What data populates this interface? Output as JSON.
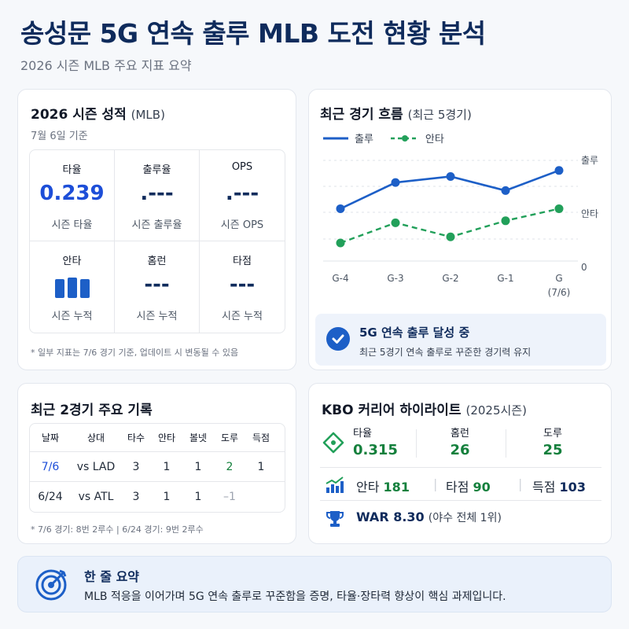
{
  "header": {
    "title": "송성문 5G 연속 출루 MLB 도전 현황 분석",
    "subtitle": "2026 시즌 MLB 주요 지표 요약"
  },
  "season": {
    "title": "2026 시즌 성적",
    "title_paren": "(MLB)",
    "date": "7월 6일 기준",
    "cells": [
      {
        "label": "타율",
        "value": "0.239",
        "caption": "시즌 타율"
      },
      {
        "label": "출루율",
        "value": ".---",
        "caption": "시즌 출루율"
      },
      {
        "label": "OPS",
        "value": ".---",
        "caption": "시즌 OPS"
      },
      {
        "label": "안타",
        "caption": "시즌 누적"
      },
      {
        "label": "홈런",
        "value": "---",
        "caption": "시즌 누적"
      },
      {
        "label": "타점",
        "value": "---",
        "caption": "시즌 누적"
      }
    ],
    "footnote": "* 일부 지표는 7/6 경기 기준, 업데이트 시 변동될 수 있음"
  },
  "trend": {
    "title": "최근 경기 흐름",
    "title_paren": "(최근 5경기)",
    "legend": {
      "onbase": "출루",
      "hits": "안타"
    },
    "status_title": "5G 연속 출루 달성 중",
    "status_desc": "최근 5경기 연속 출루로 꾸준한 경기력 유지",
    "colors": {
      "onbase": "#1d5fc7",
      "hits": "#22a05a"
    }
  },
  "chart_data": {
    "type": "line",
    "categories": [
      "G-4",
      "G-3",
      "G-2",
      "G-1",
      "G"
    ],
    "category_sub": [
      "",
      "",
      "",
      "",
      "(7/6)"
    ],
    "y_labels": [
      "출루",
      "안타",
      "0"
    ],
    "grid": true,
    "series": [
      {
        "name": "출루",
        "style": "solid",
        "values": [
          0.52,
          0.78,
          0.84,
          0.7,
          0.9
        ]
      },
      {
        "name": "안타",
        "style": "dashed",
        "values": [
          0.18,
          0.38,
          0.24,
          0.4,
          0.52
        ]
      }
    ],
    "ylim": [
      0,
      1
    ]
  },
  "recent": {
    "title": "최근 2경기 주요 기록",
    "headers": [
      "날짜",
      "상대",
      "타수",
      "안타",
      "볼넷",
      "도루",
      "득점"
    ],
    "rows": [
      [
        "7/6",
        "vs LAD",
        "3",
        "1",
        "1",
        "2",
        "1"
      ],
      [
        "6/24",
        "vs ATL",
        "3",
        "1",
        "1",
        "–1",
        ""
      ]
    ],
    "footnote": "* 7/6 경기: 8번 2루수  |  6/24 경기: 9번 2루수"
  },
  "kbo": {
    "title": "KBO 커리어 하이라이트",
    "title_paren": "(2025시즌)",
    "avg_label": "타율",
    "avg_value": "0.315",
    "hr_label": "홈런",
    "hr_value": "26",
    "sb_label": "도루",
    "sb_value": "25",
    "hits_label": "안타",
    "hits_value": "181",
    "rbi_label": "타점",
    "rbi_value": "90",
    "runs_label": "득점",
    "runs_value": "103",
    "war": "WAR 8.30",
    "war_note": "(야수 전체 1위)"
  },
  "summary": {
    "title": "한 줄 요약",
    "text": "MLB 적응을 이어가며 5G 연속 출루로 꾸준함을 증명, 타율·장타력 향상이 핵심 과제입니다."
  }
}
